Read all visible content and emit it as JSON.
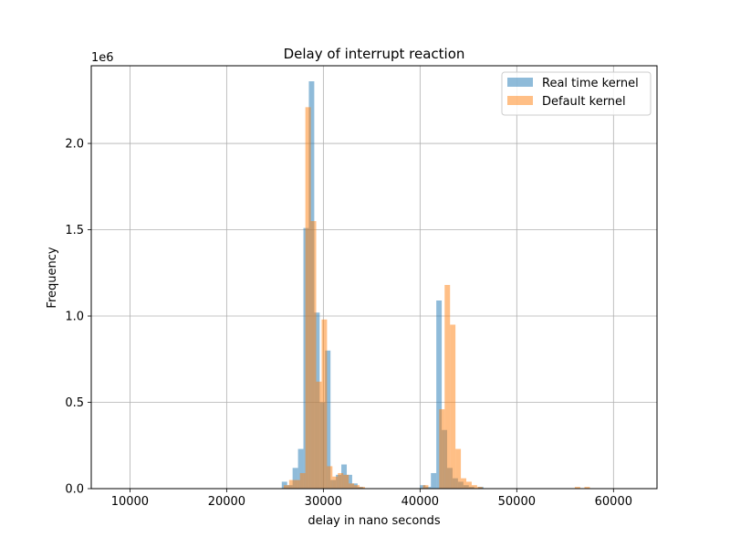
{
  "chart_data": {
    "type": "bar",
    "title": "Delay of interrupt reaction",
    "xlabel": "delay in nano seconds",
    "ylabel": "Frequency",
    "y_offset_label": "1e6",
    "xlim": [
      6000,
      64500
    ],
    "ylim": [
      0,
      2.45
    ],
    "x_ticks": [
      10000,
      20000,
      30000,
      40000,
      50000,
      60000
    ],
    "y_ticks": [
      0.0,
      0.5,
      1.0,
      1.5,
      2.0
    ],
    "y_tick_labels": [
      "0.0",
      "0.5",
      "1.0",
      "1.5",
      "2.0"
    ],
    "grid": true,
    "legend_position": "top-right",
    "series": [
      {
        "name": "Real time kernel",
        "color": "#1f77b4",
        "bin_width": 560,
        "bins": [
          [
            25700,
            0.04
          ],
          [
            26260,
            0.02
          ],
          [
            26820,
            0.12
          ],
          [
            27380,
            0.23
          ],
          [
            27940,
            1.51
          ],
          [
            28500,
            2.36
          ],
          [
            29060,
            1.02
          ],
          [
            29620,
            0.5
          ],
          [
            30180,
            0.8
          ],
          [
            30740,
            0.05
          ],
          [
            31300,
            0.08
          ],
          [
            31860,
            0.14
          ],
          [
            32420,
            0.08
          ],
          [
            32980,
            0.03
          ],
          [
            33540,
            0.01
          ],
          [
            40000,
            0.02
          ],
          [
            40560,
            0.01
          ],
          [
            41120,
            0.09
          ],
          [
            41680,
            1.09
          ],
          [
            42240,
            0.34
          ],
          [
            42800,
            0.12
          ],
          [
            43360,
            0.06
          ],
          [
            43920,
            0.04
          ],
          [
            44480,
            0.02
          ],
          [
            45040,
            0.01
          ],
          [
            46000,
            0.01
          ]
        ]
      },
      {
        "name": "Default kernel",
        "color": "#ff7f0e",
        "bin_width": 560,
        "bins": [
          [
            25900,
            0.02
          ],
          [
            26460,
            0.05
          ],
          [
            27020,
            0.05
          ],
          [
            27580,
            0.09
          ],
          [
            28140,
            2.21
          ],
          [
            28700,
            1.55
          ],
          [
            29260,
            0.62
          ],
          [
            29820,
            0.98
          ],
          [
            30380,
            0.13
          ],
          [
            30940,
            0.07
          ],
          [
            31500,
            0.09
          ],
          [
            32060,
            0.08
          ],
          [
            32620,
            0.03
          ],
          [
            33180,
            0.02
          ],
          [
            33740,
            0.01
          ],
          [
            40300,
            0.02
          ],
          [
            41980,
            0.46
          ],
          [
            42540,
            1.18
          ],
          [
            43100,
            0.95
          ],
          [
            43660,
            0.23
          ],
          [
            44220,
            0.06
          ],
          [
            44780,
            0.04
          ],
          [
            45340,
            0.02
          ],
          [
            45900,
            0.01
          ],
          [
            56000,
            0.01
          ],
          [
            57000,
            0.01
          ]
        ]
      }
    ]
  }
}
